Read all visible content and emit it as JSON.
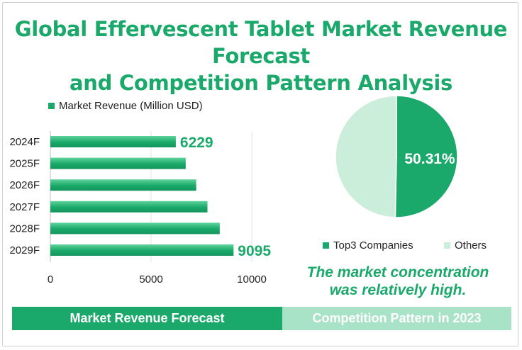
{
  "title_lines": [
    "Global Effervescent Tablet Market Revenue Forecast",
    "and Competition Pattern Analysis"
  ],
  "colors": {
    "accent": "#1aa96a",
    "light": "#cbeedb",
    "footer_light": "#a9e3c7"
  },
  "chart_data": [
    {
      "type": "bar",
      "orientation": "horizontal",
      "legend": "Market Revenue (Million USD)",
      "categories": [
        "2024F",
        "2025F",
        "2026F",
        "2027F",
        "2028F",
        "2029F"
      ],
      "values": [
        6229,
        6720,
        7240,
        7800,
        8410,
        9095
      ],
      "data_labels": {
        "2024F": "6229",
        "2029F": "9095"
      },
      "xlim": [
        0,
        10000
      ],
      "xticks": [
        "0",
        "5000",
        "10000"
      ]
    },
    {
      "type": "pie",
      "slices": [
        {
          "name": "Top3 Companies",
          "value": 50.31,
          "color": "#1aa96a"
        },
        {
          "name": "Others",
          "value": 49.69,
          "color": "#cbeedb"
        }
      ],
      "data_label": "50.31%"
    }
  ],
  "conclusion_lines": [
    "The market concentration",
    "was relatively high."
  ],
  "footer": {
    "left": "Market Revenue Forecast",
    "right": "Competition Pattern  in 2023"
  }
}
